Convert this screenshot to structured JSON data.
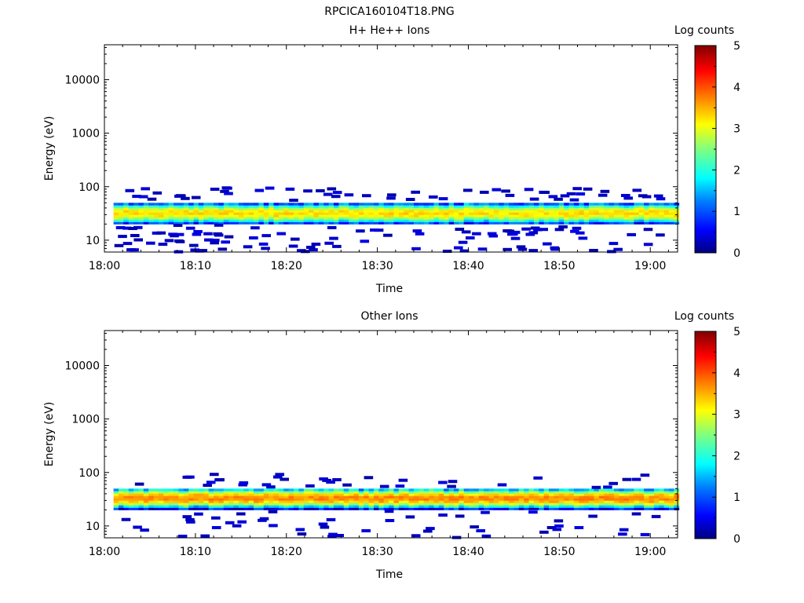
{
  "page_title": "RPCICA160104T18.PNG",
  "colors": {
    "colormap": [
      "#00007f",
      "#0000ff",
      "#007fff",
      "#00ffff",
      "#7fff7f",
      "#ffff00",
      "#ff7f00",
      "#ff0000",
      "#7f0000"
    ],
    "axis": "#000000"
  },
  "chart_data": [
    {
      "type": "heatmap",
      "title": "H+ He++ Ions",
      "xlabel": "Time",
      "ylabel": "Energy (eV)",
      "x_tick_labels": [
        "18:00",
        "18:10",
        "18:20",
        "18:30",
        "18:40",
        "18:50",
        "19:00"
      ],
      "x_tick_minutes": [
        0,
        10,
        20,
        30,
        40,
        50,
        60
      ],
      "xlim_minutes": [
        0,
        63
      ],
      "y_tick_labels": [
        "10",
        "100",
        "1000",
        "10000"
      ],
      "y_tick_values": [
        10,
        100,
        1000,
        10000
      ],
      "ylim": [
        6,
        45000
      ],
      "y_scale": "log",
      "colorbar": {
        "label": "Log counts",
        "tick_labels": [
          "0",
          "1",
          "2",
          "3",
          "4",
          "5"
        ],
        "range": [
          0,
          5
        ]
      },
      "data_time_range_minutes": [
        1,
        63
      ],
      "main_band": {
        "center_ev": 32,
        "low_ev": 20,
        "high_ev": 50,
        "peak_log_counts": 3.3
      },
      "sparse_counts_log": 0.2,
      "sparse_energy_range_ev": [
        6,
        95
      ]
    },
    {
      "type": "heatmap",
      "title": "Other Ions",
      "xlabel": "Time",
      "ylabel": "Energy (eV)",
      "x_tick_labels": [
        "18:00",
        "18:10",
        "18:20",
        "18:30",
        "18:40",
        "18:50",
        "19:00"
      ],
      "x_tick_minutes": [
        0,
        10,
        20,
        30,
        40,
        50,
        60
      ],
      "xlim_minutes": [
        0,
        63
      ],
      "y_tick_labels": [
        "10",
        "100",
        "1000",
        "10000"
      ],
      "y_tick_values": [
        10,
        100,
        1000,
        10000
      ],
      "ylim": [
        6,
        45000
      ],
      "y_scale": "log",
      "colorbar": {
        "label": "Log counts",
        "tick_labels": [
          "0",
          "1",
          "2",
          "3",
          "4",
          "5"
        ],
        "range": [
          0,
          5
        ]
      },
      "data_time_range_minutes": [
        1,
        63
      ],
      "main_band": {
        "center_ev": 33,
        "low_ev": 20,
        "high_ev": 50,
        "peak_log_counts": 3.7
      },
      "sparse_counts_log": 0.2,
      "sparse_energy_range_ev": [
        6,
        95
      ]
    }
  ]
}
